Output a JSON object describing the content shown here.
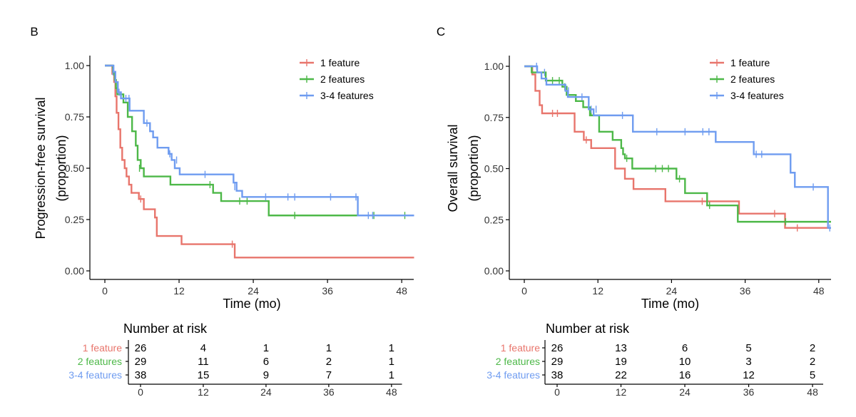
{
  "colors": {
    "one": "#E8756C",
    "two": "#4DB848",
    "three": "#6F9CF0",
    "axis": "#000000"
  },
  "risk_table_title": "Number at risk",
  "chart_data": [
    {
      "type": "line",
      "subtype": "kaplan-meier",
      "panel_label": "B",
      "ylabel_lines": [
        "Progression-free survival",
        "(proportion)"
      ],
      "xlabel": "Time (mo)",
      "xlim": [
        0,
        50
      ],
      "ylim": [
        0,
        1
      ],
      "xticks": [
        0,
        12,
        24,
        36,
        48
      ],
      "yticks": [
        0,
        0.25,
        0.5,
        0.75,
        1
      ],
      "ytick_labels": [
        "0.00",
        "0.25",
        "0.50",
        "0.75",
        "1.00"
      ],
      "legend_position": "top-right",
      "series": [
        {
          "name": "1 feature",
          "color_key": "one",
          "steps": [
            [
              0,
              1.0
            ],
            [
              1.2,
              0.96
            ],
            [
              1.5,
              0.92
            ],
            [
              1.7,
              0.85
            ],
            [
              1.9,
              0.77
            ],
            [
              2.2,
              0.69
            ],
            [
              2.5,
              0.6
            ],
            [
              2.8,
              0.54
            ],
            [
              3.2,
              0.5
            ],
            [
              3.5,
              0.46
            ],
            [
              3.9,
              0.42
            ],
            [
              4.3,
              0.38
            ],
            [
              5.5,
              0.35
            ],
            [
              6.3,
              0.3
            ],
            [
              8.1,
              0.26
            ],
            [
              8.4,
              0.17
            ],
            [
              12.4,
              0.13
            ],
            [
              21.0,
              0.065
            ],
            [
              50,
              0.065
            ]
          ],
          "censors": [
            [
              5.8,
              0.35
            ],
            [
              20.6,
              0.13
            ]
          ]
        },
        {
          "name": "2 features",
          "color_key": "two",
          "steps": [
            [
              0,
              1.0
            ],
            [
              1.3,
              0.97
            ],
            [
              1.6,
              0.93
            ],
            [
              1.8,
              0.89
            ],
            [
              2.0,
              0.86
            ],
            [
              3.0,
              0.82
            ],
            [
              3.7,
              0.75
            ],
            [
              4.4,
              0.68
            ],
            [
              5.0,
              0.61
            ],
            [
              5.3,
              0.54
            ],
            [
              5.8,
              0.5
            ],
            [
              6.3,
              0.46
            ],
            [
              10.6,
              0.42
            ],
            [
              17.5,
              0.38
            ],
            [
              18.8,
              0.34
            ],
            [
              26.5,
              0.27
            ],
            [
              50,
              0.27
            ]
          ],
          "censors": [
            [
              1.4,
              0.97
            ],
            [
              5.6,
              0.5
            ],
            [
              17.0,
              0.42
            ],
            [
              21.8,
              0.34
            ],
            [
              23.0,
              0.34
            ],
            [
              30.7,
              0.27
            ],
            [
              43.5,
              0.27
            ],
            [
              48.5,
              0.27
            ]
          ]
        },
        {
          "name": "3-4 features",
          "color_key": "three",
          "steps": [
            [
              0,
              1.0
            ],
            [
              1.4,
              0.97
            ],
            [
              1.7,
              0.92
            ],
            [
              2.1,
              0.87
            ],
            [
              2.6,
              0.84
            ],
            [
              4.0,
              0.78
            ],
            [
              6.3,
              0.72
            ],
            [
              7.3,
              0.68
            ],
            [
              7.8,
              0.65
            ],
            [
              8.5,
              0.6
            ],
            [
              10.3,
              0.57
            ],
            [
              10.8,
              0.54
            ],
            [
              11.3,
              0.5
            ],
            [
              12.1,
              0.47
            ],
            [
              20.8,
              0.43
            ],
            [
              21.3,
              0.39
            ],
            [
              22.2,
              0.36
            ],
            [
              40.9,
              0.27
            ],
            [
              50,
              0.27
            ]
          ],
          "censors": [
            [
              1.3,
              0.97
            ],
            [
              2.3,
              0.87
            ],
            [
              3.4,
              0.84
            ],
            [
              3.9,
              0.84
            ],
            [
              6.8,
              0.72
            ],
            [
              10.5,
              0.57
            ],
            [
              11.6,
              0.54
            ],
            [
              16.2,
              0.47
            ],
            [
              21.0,
              0.41
            ],
            [
              26.0,
              0.36
            ],
            [
              29.6,
              0.36
            ],
            [
              30.7,
              0.36
            ],
            [
              36.5,
              0.36
            ],
            [
              40.6,
              0.36
            ],
            [
              42.6,
              0.27
            ],
            [
              43.3,
              0.27
            ]
          ]
        }
      ],
      "risk_table": {
        "times": [
          0,
          12,
          24,
          36,
          48
        ],
        "rows": [
          {
            "name": "1 feature",
            "color_key": "one",
            "counts": [
              26,
              4,
              1,
              1,
              1
            ]
          },
          {
            "name": "2 features",
            "color_key": "two",
            "counts": [
              29,
              11,
              6,
              2,
              1
            ]
          },
          {
            "name": "3-4 features",
            "color_key": "three",
            "counts": [
              38,
              15,
              9,
              7,
              1
            ]
          }
        ]
      }
    },
    {
      "type": "line",
      "subtype": "kaplan-meier",
      "panel_label": "C",
      "ylabel_lines": [
        "Overall survival",
        "(proportion)"
      ],
      "xlabel": "Time (mo)",
      "xlim": [
        0,
        50
      ],
      "ylim": [
        0,
        1
      ],
      "xticks": [
        0,
        12,
        24,
        36,
        48
      ],
      "yticks": [
        0,
        0.25,
        0.5,
        0.75,
        1
      ],
      "ytick_labels": [
        "0.00",
        "0.25",
        "0.50",
        "0.75",
        "1.00"
      ],
      "legend_position": "top-right",
      "series": [
        {
          "name": "1 feature",
          "color_key": "one",
          "steps": [
            [
              0,
              1.0
            ],
            [
              1.3,
              0.96
            ],
            [
              1.8,
              0.88
            ],
            [
              2.5,
              0.81
            ],
            [
              2.9,
              0.77
            ],
            [
              8.2,
              0.68
            ],
            [
              9.7,
              0.64
            ],
            [
              10.9,
              0.6
            ],
            [
              14.8,
              0.5
            ],
            [
              16.4,
              0.45
            ],
            [
              17.8,
              0.4
            ],
            [
              23.0,
              0.34
            ],
            [
              35.0,
              0.28
            ],
            [
              42.5,
              0.21
            ],
            [
              50,
              0.21
            ]
          ],
          "censors": [
            [
              4.6,
              0.77
            ],
            [
              5.4,
              0.77
            ],
            [
              10.1,
              0.64
            ],
            [
              29.0,
              0.34
            ],
            [
              40.8,
              0.28
            ],
            [
              44.5,
              0.21
            ]
          ]
        },
        {
          "name": "2 features",
          "color_key": "two",
          "steps": [
            [
              0,
              1.0
            ],
            [
              1.2,
              0.97
            ],
            [
              3.5,
              0.93
            ],
            [
              6.2,
              0.9
            ],
            [
              6.9,
              0.86
            ],
            [
              8.4,
              0.83
            ],
            [
              9.6,
              0.8
            ],
            [
              10.7,
              0.76
            ],
            [
              12.2,
              0.68
            ],
            [
              14.4,
              0.64
            ],
            [
              15.8,
              0.6
            ],
            [
              16.1,
              0.57
            ],
            [
              16.4,
              0.55
            ],
            [
              17.6,
              0.5
            ],
            [
              24.8,
              0.45
            ],
            [
              26.2,
              0.38
            ],
            [
              29.8,
              0.32
            ],
            [
              34.8,
              0.24
            ],
            [
              50,
              0.24
            ]
          ],
          "censors": [
            [
              4.6,
              0.93
            ],
            [
              5.7,
              0.93
            ],
            [
              6.6,
              0.9
            ],
            [
              10.9,
              0.78
            ],
            [
              16.7,
              0.55
            ],
            [
              21.4,
              0.5
            ],
            [
              22.5,
              0.5
            ],
            [
              23.5,
              0.5
            ],
            [
              25.3,
              0.45
            ],
            [
              30.2,
              0.32
            ],
            [
              42.6,
              0.24
            ]
          ]
        },
        {
          "name": "3-4 features",
          "color_key": "three",
          "steps": [
            [
              0,
              1.0
            ],
            [
              2.1,
              0.97
            ],
            [
              2.8,
              0.94
            ],
            [
              3.6,
              0.91
            ],
            [
              6.7,
              0.88
            ],
            [
              7.1,
              0.85
            ],
            [
              10.5,
              0.79
            ],
            [
              11.3,
              0.76
            ],
            [
              17.7,
              0.68
            ],
            [
              31.2,
              0.63
            ],
            [
              37.4,
              0.57
            ],
            [
              43.4,
              0.48
            ],
            [
              44.1,
              0.41
            ],
            [
              49.5,
              0.21
            ],
            [
              50,
              0.21
            ]
          ],
          "censors": [
            [
              2.0,
              1.0
            ],
            [
              3.3,
              0.97
            ],
            [
              7.2,
              0.88
            ],
            [
              9.4,
              0.85
            ],
            [
              10.9,
              0.79
            ],
            [
              11.7,
              0.79
            ],
            [
              16.0,
              0.76
            ],
            [
              21.6,
              0.68
            ],
            [
              26.2,
              0.68
            ],
            [
              29.1,
              0.68
            ],
            [
              30.1,
              0.68
            ],
            [
              37.8,
              0.57
            ],
            [
              38.7,
              0.57
            ],
            [
              47.1,
              0.41
            ],
            [
              49.8,
              0.21
            ]
          ]
        }
      ],
      "risk_table": {
        "times": [
          0,
          12,
          24,
          36,
          48
        ],
        "rows": [
          {
            "name": "1 feature",
            "color_key": "one",
            "counts": [
              26,
              13,
              6,
              5,
              2
            ]
          },
          {
            "name": "2 features",
            "color_key": "two",
            "counts": [
              29,
              19,
              10,
              3,
              2
            ]
          },
          {
            "name": "3-4 features",
            "color_key": "three",
            "counts": [
              38,
              22,
              16,
              12,
              5
            ]
          }
        ]
      }
    }
  ]
}
